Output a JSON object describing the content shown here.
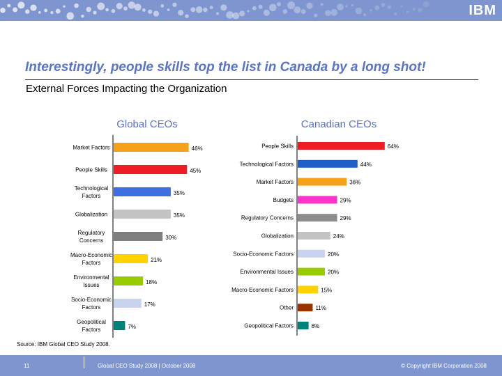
{
  "header": {
    "logo": "IBM"
  },
  "title": "Interestingly, people skills top the list in Canada by a long shot!",
  "subtitle": "External Forces Impacting the Organization",
  "chart_data": [
    {
      "type": "bar",
      "orientation": "horizontal",
      "title": "Global CEOs",
      "categories": [
        [
          "Market Factors"
        ],
        [
          "People Skills"
        ],
        [
          "Technological",
          "Factors"
        ],
        [
          "Globalization"
        ],
        [
          "Regulatory",
          "Concerns"
        ],
        [
          "Macro-Economic",
          "Factors"
        ],
        [
          "Environmental",
          "Issues"
        ],
        [
          "Socio-Economic",
          "Factors"
        ],
        [
          "Geopolitical",
          "Factors"
        ]
      ],
      "values": [
        46,
        45,
        35,
        35,
        30,
        21,
        18,
        17,
        7
      ],
      "value_labels": [
        "46%",
        "45%",
        "35%",
        "35%",
        "30%",
        "21%",
        "18%",
        "17%",
        "7%"
      ],
      "colors": [
        "#f5a21a",
        "#ee1c25",
        "#3d6fe0",
        "#c4c4c4",
        "#7f7f7f",
        "#ffd200",
        "#99cc00",
        "#c8d3f0",
        "#00827b"
      ],
      "xlim": [
        0,
        64
      ]
    },
    {
      "type": "bar",
      "orientation": "horizontal",
      "title": "Canadian CEOs",
      "categories": [
        [
          "People Skills"
        ],
        [
          "Technological Factors"
        ],
        [
          "Market Factors"
        ],
        [
          "Budgets"
        ],
        [
          "Regulatory Concerns"
        ],
        [
          "Globalization"
        ],
        [
          "Socio-Economic Factors"
        ],
        [
          "Environmental Issues"
        ],
        [
          "Macro-Economic Factors"
        ],
        [
          "Other"
        ],
        [
          "Geopolitical Factors"
        ]
      ],
      "values": [
        64,
        44,
        36,
        29,
        29,
        24,
        20,
        20,
        15,
        11,
        8
      ],
      "value_labels": [
        "64%",
        "44%",
        "36%",
        "29%",
        "29%",
        "24%",
        "20%",
        "20%",
        "15%",
        "11%",
        "8%"
      ],
      "colors": [
        "#ee1c25",
        "#1f5fc8",
        "#f5a21a",
        "#ff33cc",
        "#8c8c8c",
        "#c4c4c4",
        "#c8d3f0",
        "#99cc00",
        "#ffd200",
        "#993300",
        "#00827b"
      ],
      "xlim": [
        0,
        64
      ]
    }
  ],
  "source": "Source: IBM Global CEO Study 2008.",
  "footer": {
    "page_number": "11",
    "study": "Global CEO Study 2008 | October 2008",
    "copyright": "© Copyright IBM Corporation 2008"
  },
  "theme": {
    "band_color": "#7f95d0",
    "title_color": "#5b74c2"
  }
}
